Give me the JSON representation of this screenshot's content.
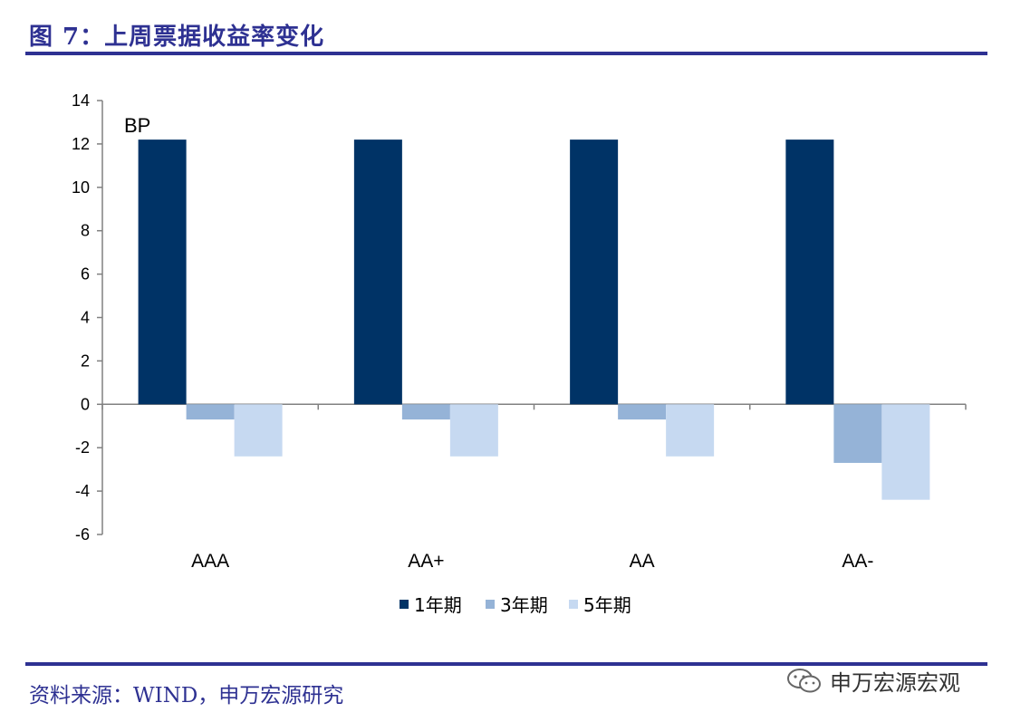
{
  "header": {
    "title": "图 7：上周票据收益率变化"
  },
  "footer": {
    "source": "资料来源：WIND，申万宏源研究",
    "watermark": "申万宏源宏观"
  },
  "colors": {
    "accent": "#2e3192",
    "series": [
      "#003366",
      "#95b3d7",
      "#c6d9f1"
    ]
  },
  "chart_data": {
    "type": "bar",
    "title": "",
    "unit_label": "BP",
    "categories": [
      "AAA",
      "AA+",
      "AA",
      "AA-"
    ],
    "series": [
      {
        "name": "1年期",
        "values": [
          12.2,
          12.2,
          12.2,
          12.2
        ]
      },
      {
        "name": "3年期",
        "values": [
          -0.7,
          -0.7,
          -0.7,
          -2.7
        ]
      },
      {
        "name": "5年期",
        "values": [
          -2.4,
          -2.4,
          -2.4,
          -4.4
        ]
      }
    ],
    "ylim": [
      -6,
      14
    ],
    "yticks": [
      -6,
      -4,
      -2,
      0,
      2,
      4,
      6,
      8,
      10,
      12,
      14
    ],
    "grid": false,
    "legend_position": "bottom"
  }
}
